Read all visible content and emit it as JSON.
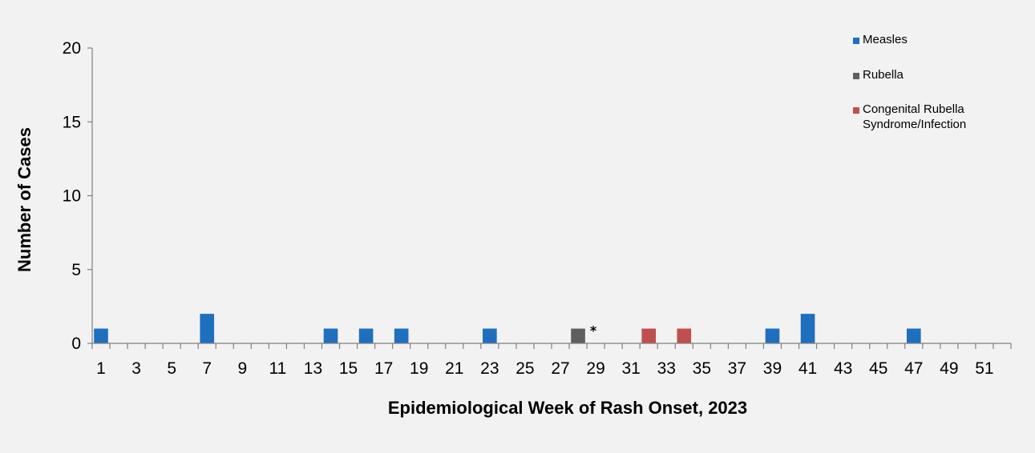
{
  "chart_data": {
    "type": "bar",
    "xlabel": "Epidemiological Week of Rash Onset, 2023",
    "ylabel": "Number of Cases",
    "ylim": [
      0,
      20
    ],
    "yticks": [
      0,
      5,
      10,
      15,
      20
    ],
    "x_range": [
      1,
      52
    ],
    "xticks": [
      1,
      3,
      5,
      7,
      9,
      11,
      13,
      15,
      17,
      19,
      21,
      23,
      25,
      27,
      29,
      31,
      33,
      35,
      37,
      39,
      41,
      43,
      45,
      47,
      49,
      51
    ],
    "grid": false,
    "legend_position": "top-right",
    "series": [
      {
        "name": "Measles",
        "color": "#1f6fbf",
        "points": [
          {
            "week": 1,
            "value": 1
          },
          {
            "week": 7,
            "value": 2
          },
          {
            "week": 14,
            "value": 1
          },
          {
            "week": 16,
            "value": 1
          },
          {
            "week": 18,
            "value": 1
          },
          {
            "week": 23,
            "value": 1
          },
          {
            "week": 39,
            "value": 1
          },
          {
            "week": 41,
            "value": 2
          },
          {
            "week": 47,
            "value": 1
          }
        ]
      },
      {
        "name": "Rubella",
        "color": "#5f5f5f",
        "points": [
          {
            "week": 28,
            "value": 1
          }
        ]
      },
      {
        "name": "Congenital Rubella Syndrome/Infection",
        "legend_lines": [
          "Congenital Rubella",
          "Syndrome/Infection"
        ],
        "color": "#c0504d",
        "points": [
          {
            "week": 32,
            "value": 1
          },
          {
            "week": 34,
            "value": 1
          }
        ]
      }
    ],
    "annotations": [
      {
        "week": 29,
        "text": "*"
      }
    ]
  }
}
